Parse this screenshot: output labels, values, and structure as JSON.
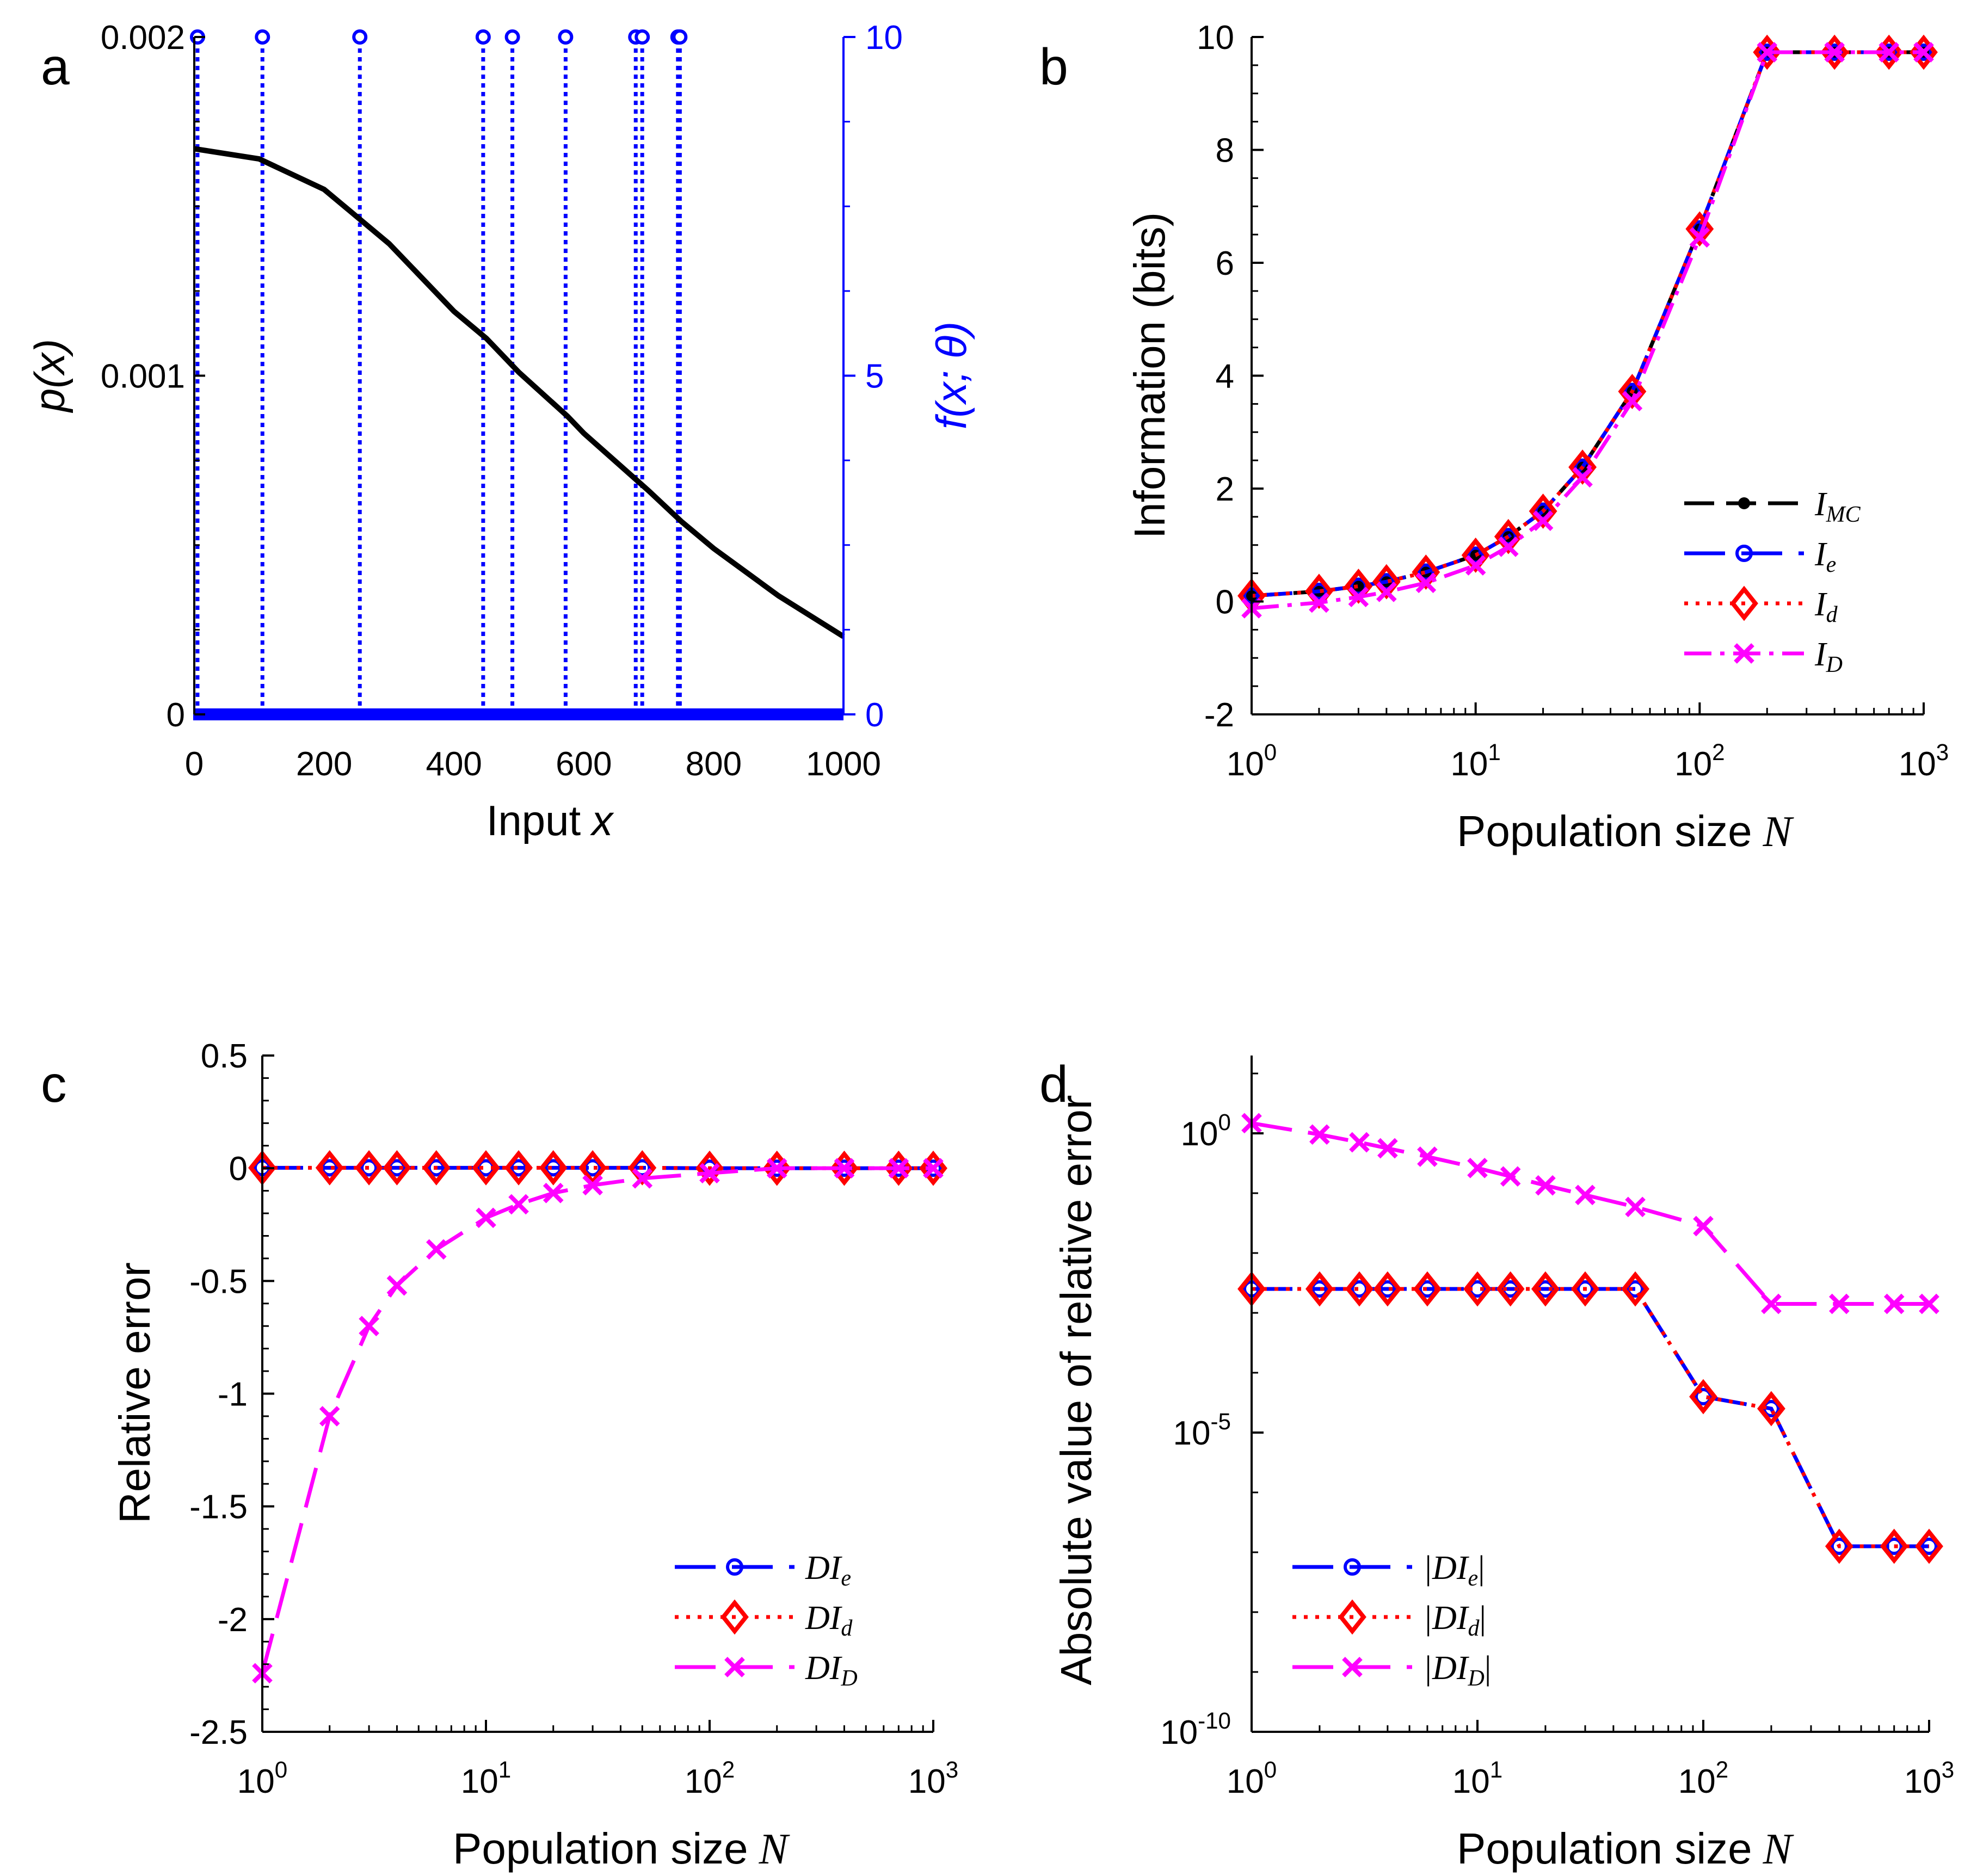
{
  "chart_data": [
    {
      "panel": "a",
      "type": "line",
      "xlabel": "Input",
      "xlabel_var": "x",
      "ylabel": "p(x)",
      "ylabel_right": "f(x; θ)",
      "xlim": [
        0,
        1000
      ],
      "ylim": [
        0,
        0.002
      ],
      "ylim_right": [
        0,
        10
      ],
      "xticks": [
        "0",
        "200",
        "400",
        "600",
        "800",
        "1000"
      ],
      "yticks": [
        {
          "v": 0,
          "label": "0"
        },
        {
          "v": 0.001,
          "label": "0.001"
        },
        {
          "v": 0.002,
          "label": "0.002"
        }
      ],
      "yticks_right": [
        {
          "v": 0,
          "label": "0"
        },
        {
          "v": 5,
          "label": "5"
        },
        {
          "v": 10,
          "label": "10"
        }
      ],
      "curve": {
        "name": "p(x)",
        "color": "#000000",
        "x": [
          0,
          100,
          200,
          250,
          300,
          400,
          450,
          500,
          575,
          600,
          700,
          750,
          800,
          900,
          1000
        ],
        "y": [
          0.00167,
          0.00164,
          0.00155,
          0.00147,
          0.00139,
          0.00119,
          0.00111,
          0.00101,
          0.00088,
          0.00083,
          0.00066,
          0.00057,
          0.00049,
          0.00035,
          0.00023
        ]
      },
      "stems": {
        "name": "f(x; θ)",
        "color": "#0000ff",
        "x": [
          5,
          105,
          255,
          445,
          490,
          572,
          680,
          690,
          745,
          748
        ],
        "value": 10
      }
    },
    {
      "panel": "b",
      "type": "line",
      "xscale": "log",
      "xlabel": "Population size",
      "xlabel_var": "N",
      "ylabel": "Information (bits)",
      "xlim": [
        1,
        1000
      ],
      "ylim": [
        -2,
        10
      ],
      "xticks": [
        {
          "base": "10",
          "exp": "0"
        },
        {
          "base": "10",
          "exp": "1"
        },
        {
          "base": "10",
          "exp": "2"
        },
        {
          "base": "10",
          "exp": "3"
        }
      ],
      "yticks": [
        "-2",
        "0",
        "2",
        "4",
        "6",
        "8",
        "10"
      ],
      "x": [
        1,
        2,
        3,
        4,
        6,
        10,
        14,
        20,
        30,
        50,
        100,
        200,
        400,
        700,
        1000
      ],
      "legend_position": "center-right",
      "series": [
        {
          "name": "I",
          "sub": "MC",
          "color": "#000000",
          "style": "dash",
          "marker": "dot",
          "values": [
            0.1,
            0.18,
            0.27,
            0.35,
            0.52,
            0.82,
            1.15,
            1.6,
            2.38,
            3.72,
            6.6,
            9.73,
            9.73,
            9.73,
            9.73
          ]
        },
        {
          "name": "I",
          "sub": "e",
          "color": "#0000ff",
          "style": "longdash",
          "marker": "circle",
          "values": [
            0.1,
            0.18,
            0.27,
            0.35,
            0.52,
            0.82,
            1.15,
            1.6,
            2.38,
            3.72,
            6.6,
            9.73,
            9.73,
            9.73,
            9.73
          ]
        },
        {
          "name": "I",
          "sub": "d",
          "color": "#ff0000",
          "style": "dot",
          "marker": "diamond",
          "values": [
            0.1,
            0.18,
            0.27,
            0.35,
            0.52,
            0.82,
            1.15,
            1.6,
            2.38,
            3.72,
            6.6,
            9.73,
            9.73,
            9.73,
            9.73
          ]
        },
        {
          "name": "I",
          "sub": "D",
          "color": "#ff00ff",
          "style": "dashdot",
          "marker": "x",
          "values": [
            -0.12,
            -0.02,
            0.08,
            0.17,
            0.33,
            0.64,
            0.97,
            1.43,
            2.2,
            3.55,
            6.45,
            9.73,
            9.73,
            9.73,
            9.73
          ]
        }
      ]
    },
    {
      "panel": "c",
      "type": "line",
      "xscale": "log",
      "xlabel": "Population size",
      "xlabel_var": "N",
      "ylabel": "Relative error",
      "xlim": [
        1,
        1000
      ],
      "ylim": [
        -2.5,
        0.5
      ],
      "xticks": [
        {
          "base": "10",
          "exp": "0"
        },
        {
          "base": "10",
          "exp": "1"
        },
        {
          "base": "10",
          "exp": "2"
        },
        {
          "base": "10",
          "exp": "3"
        }
      ],
      "yticks": [
        "-2.5",
        "-2",
        "-1.5",
        "-1",
        "-0.5",
        "0",
        "0.5"
      ],
      "x": [
        1,
        2,
        3,
        4,
        6,
        10,
        14,
        20,
        30,
        50,
        100,
        200,
        400,
        700,
        1000
      ],
      "legend_position": "bottom-right",
      "series": [
        {
          "name": "DI",
          "sub": "e",
          "color": "#0000ff",
          "style": "longdash",
          "marker": "circle",
          "values": [
            0.002,
            0.002,
            0.002,
            0.002,
            0.002,
            0.002,
            0.002,
            0.002,
            0.002,
            0.002,
            0,
            0,
            0,
            0,
            0
          ]
        },
        {
          "name": "DI",
          "sub": "d",
          "color": "#ff0000",
          "style": "dot",
          "marker": "diamond",
          "values": [
            0.002,
            0.002,
            0.002,
            0.002,
            0.002,
            0.002,
            0.002,
            0.002,
            0.002,
            0.002,
            0,
            0,
            0,
            0,
            0
          ]
        },
        {
          "name": "DI",
          "sub": "D",
          "color": "#ff00ff",
          "style": "longdash",
          "marker": "x",
          "values": [
            -2.24,
            -1.1,
            -0.7,
            -0.52,
            -0.36,
            -0.22,
            -0.16,
            -0.11,
            -0.075,
            -0.045,
            -0.022,
            0,
            0,
            0,
            0
          ]
        }
      ]
    },
    {
      "panel": "d",
      "type": "line",
      "xscale": "log",
      "yscale": "log",
      "xlabel": "Population size",
      "xlabel_var": "N",
      "ylabel": "Absolute value of relative error",
      "xlim": [
        1,
        1000
      ],
      "ylim_log10": [
        -10,
        1.3
      ],
      "xticks": [
        {
          "base": "10",
          "exp": "0"
        },
        {
          "base": "10",
          "exp": "1"
        },
        {
          "base": "10",
          "exp": "2"
        },
        {
          "base": "10",
          "exp": "3"
        }
      ],
      "yticks": [
        {
          "base": "10",
          "exp": "0",
          "v": 0
        },
        {
          "base": "10",
          "exp": "-5",
          "v": -5
        },
        {
          "base": "10",
          "exp": "-10",
          "v": -10
        }
      ],
      "x": [
        1,
        2,
        3,
        4,
        6,
        10,
        14,
        20,
        30,
        50,
        100,
        200,
        400,
        700,
        1000
      ],
      "legend_position": "bottom-left",
      "series": [
        {
          "name": "|DI",
          "sub": "e",
          "suffix": "|",
          "color": "#0000ff",
          "style": "longdash",
          "marker": "circle",
          "log10_values": [
            -2.6,
            -2.6,
            -2.6,
            -2.6,
            -2.6,
            -2.6,
            -2.6,
            -2.6,
            -2.6,
            -2.6,
            -4.4,
            -4.6,
            -6.9,
            -6.9,
            -6.9
          ]
        },
        {
          "name": "|DI",
          "sub": "d",
          "suffix": "|",
          "color": "#ff0000",
          "style": "dot",
          "marker": "diamond",
          "log10_values": [
            -2.6,
            -2.6,
            -2.6,
            -2.6,
            -2.6,
            -2.6,
            -2.6,
            -2.6,
            -2.6,
            -2.6,
            -4.4,
            -4.6,
            -6.9,
            -6.9,
            -6.9
          ]
        },
        {
          "name": "|DI",
          "sub": "D",
          "suffix": "|",
          "color": "#ff00ff",
          "style": "longdash",
          "marker": "x",
          "log10_values": [
            0.17,
            -0.02,
            -0.15,
            -0.25,
            -0.39,
            -0.58,
            -0.72,
            -0.87,
            -1.03,
            -1.23,
            -1.55,
            -2.85,
            -2.85,
            -2.85,
            -2.85
          ]
        }
      ]
    }
  ]
}
